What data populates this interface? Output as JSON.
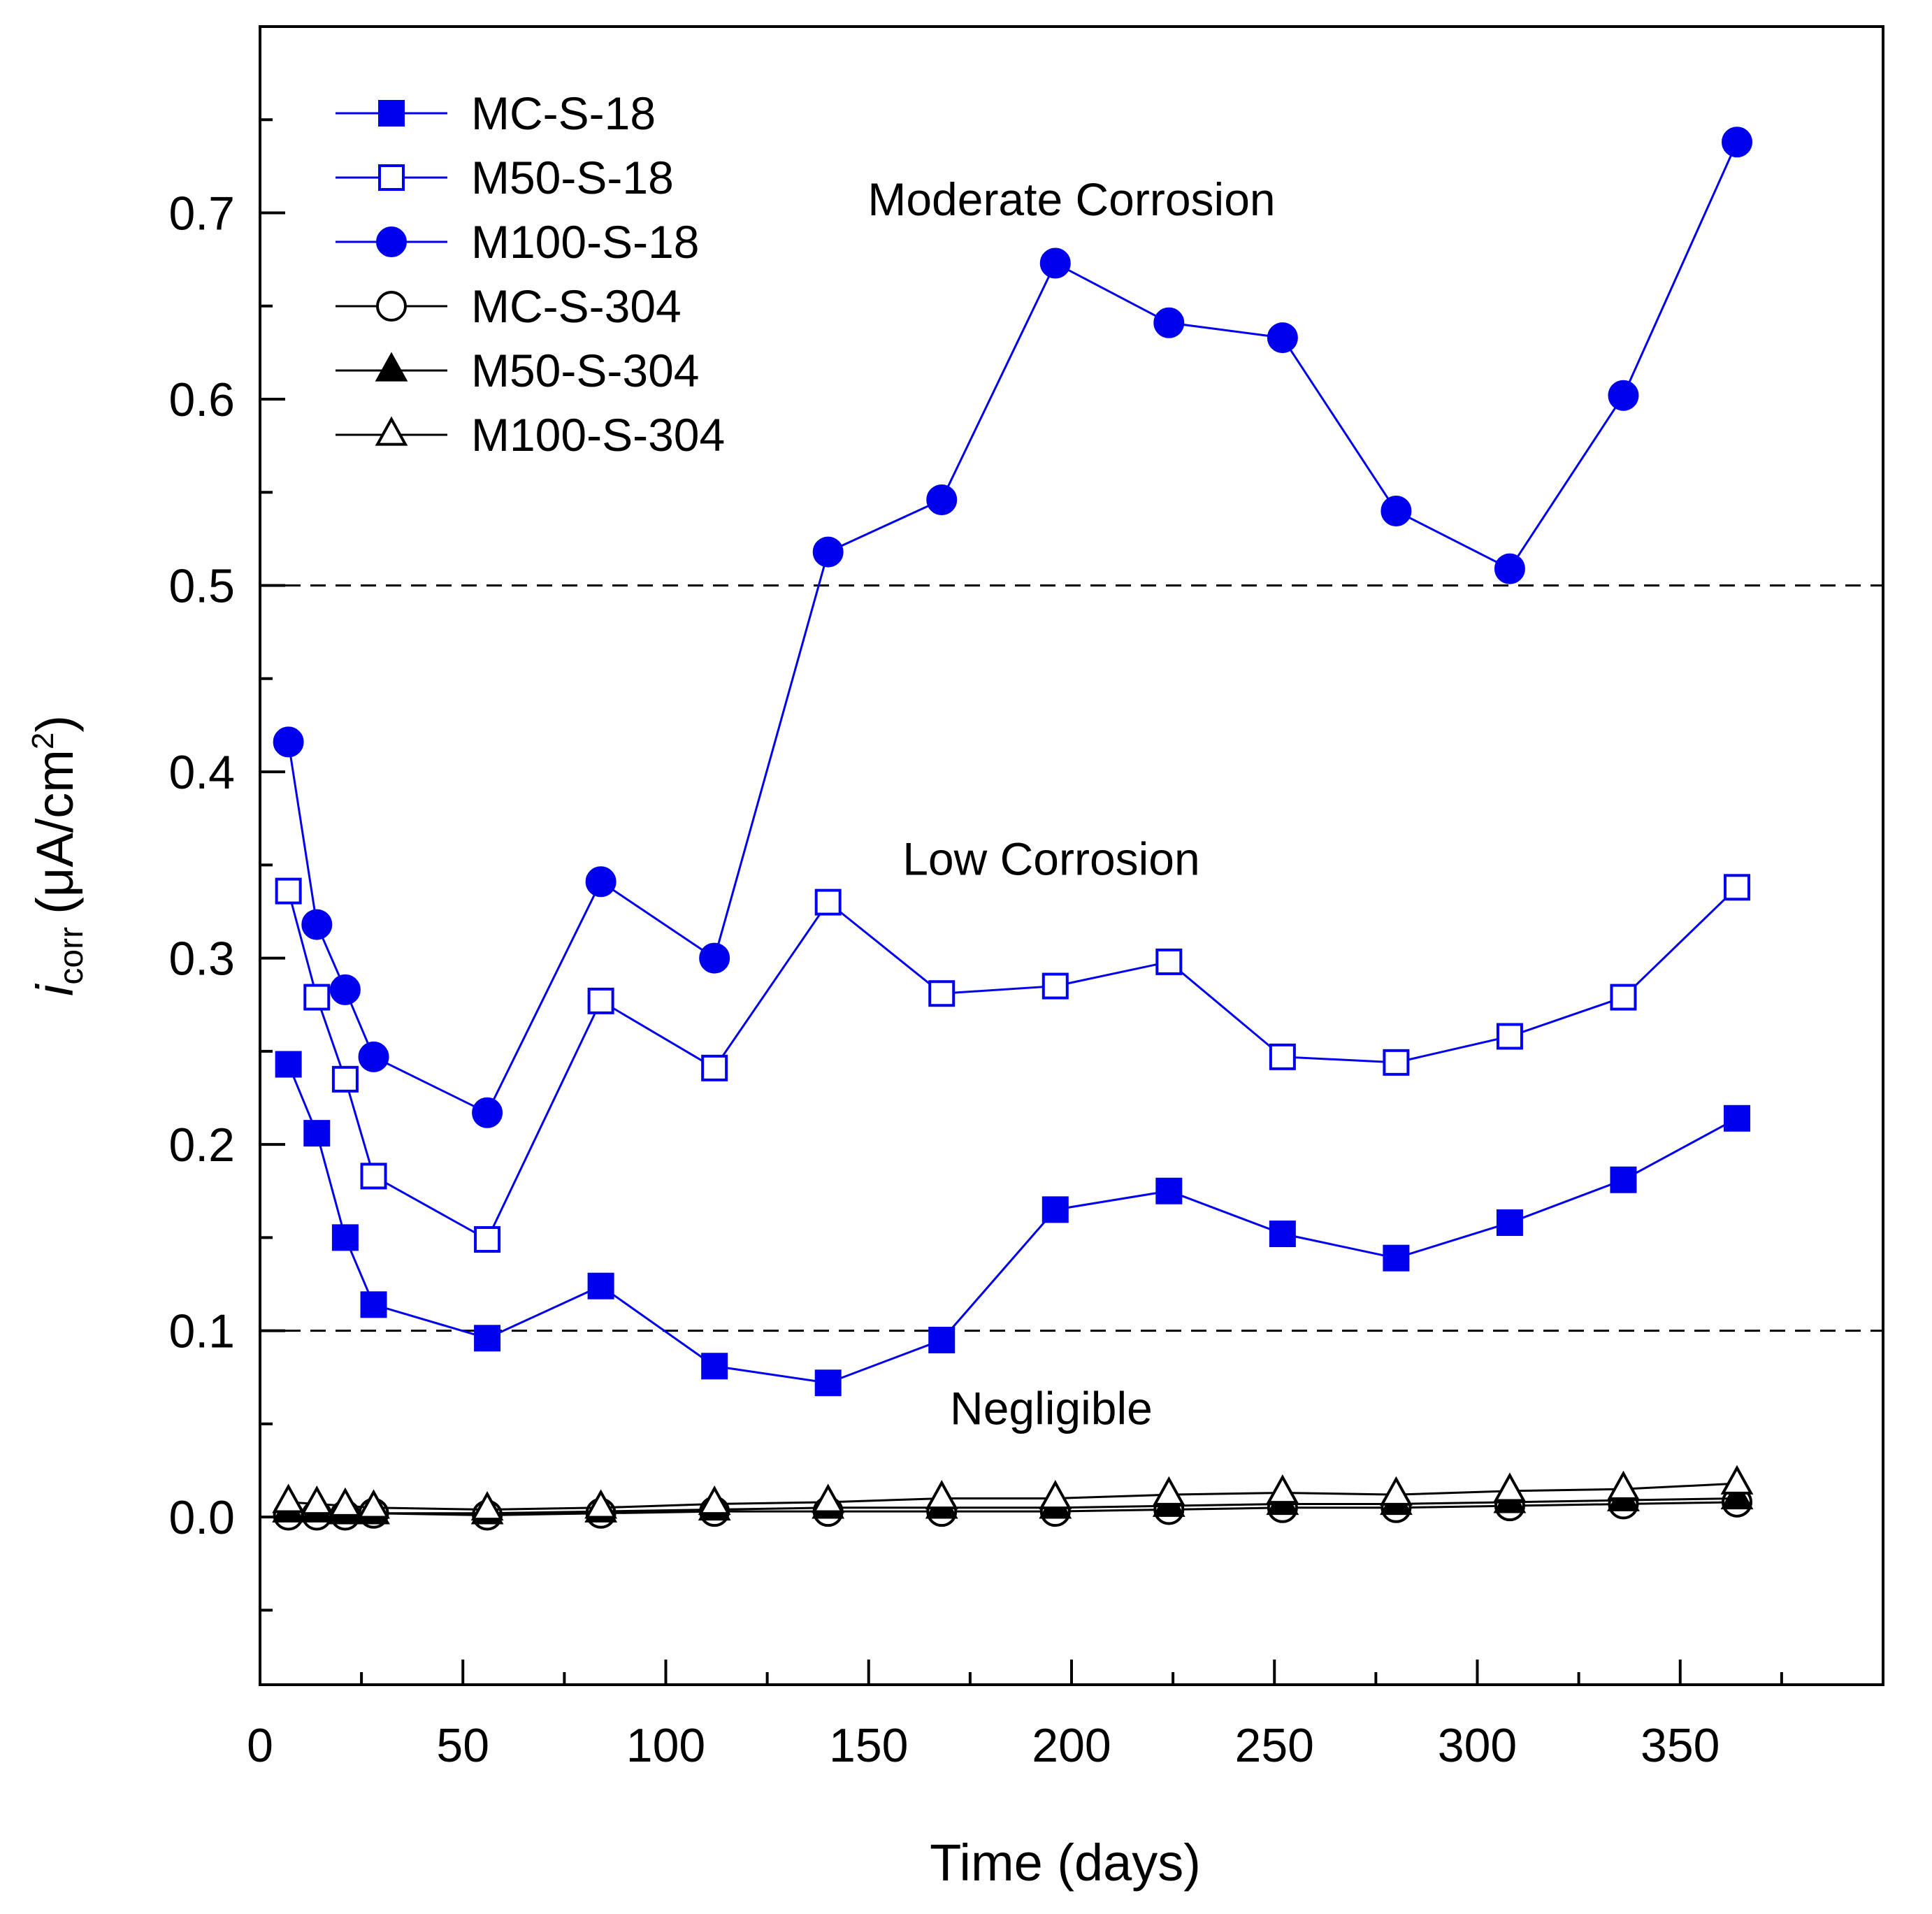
{
  "chart_data": {
    "type": "line",
    "title": "",
    "xlabel": "Time (days)",
    "ylabel": {
      "main": "i",
      "sub": "corr",
      "unit": "(μA/cm",
      "sup": "2",
      "close": ")"
    },
    "xlim": [
      0,
      400
    ],
    "ylim": [
      -0.09,
      0.8
    ],
    "xticks": [
      0,
      50,
      100,
      150,
      200,
      250,
      300,
      350
    ],
    "xtick_labels": [
      "0",
      "50",
      "100",
      "150",
      "200",
      "250",
      "300",
      "350"
    ],
    "yticks": [
      0.0,
      0.1,
      0.2,
      0.3,
      0.4,
      0.5,
      0.6,
      0.7
    ],
    "ytick_labels": [
      "0.0",
      "0.1",
      "0.2",
      "0.3",
      "0.4",
      "0.5",
      "0.6",
      "0.7"
    ],
    "grid": false,
    "legend_position": "top-left",
    "x": [
      7,
      14,
      21,
      28,
      56,
      84,
      112,
      140,
      168,
      196,
      224,
      252,
      280,
      308,
      336,
      364
    ],
    "series": [
      {
        "name": "MC-S-18",
        "color": "#0000ee",
        "marker": "square",
        "filled": true,
        "values": [
          0.243,
          0.206,
          0.15,
          0.114,
          0.096,
          0.124,
          0.081,
          0.072,
          0.095,
          0.165,
          0.175,
          0.152,
          0.139,
          0.158,
          0.181,
          0.214
        ]
      },
      {
        "name": "M50-S-18",
        "color": "#0000ee",
        "marker": "square",
        "filled": false,
        "values": [
          0.336,
          0.279,
          0.235,
          0.183,
          0.149,
          0.277,
          0.241,
          0.33,
          0.281,
          0.285,
          0.298,
          0.247,
          0.244,
          0.258,
          0.279,
          0.338
        ]
      },
      {
        "name": "M100-S-18",
        "color": "#0000ee",
        "marker": "circle",
        "filled": true,
        "values": [
          0.416,
          0.318,
          0.283,
          0.247,
          0.217,
          0.341,
          0.3,
          0.518,
          0.546,
          0.673,
          0.641,
          0.633,
          0.54,
          0.509,
          0.602,
          0.738
        ]
      },
      {
        "name": "MC-S-304",
        "color": "#000000",
        "marker": "circle",
        "filled": false,
        "values": [
          0.001,
          0.001,
          0.001,
          0.002,
          0.001,
          0.002,
          0.003,
          0.003,
          0.003,
          0.003,
          0.004,
          0.005,
          0.005,
          0.006,
          0.007,
          0.008
        ]
      },
      {
        "name": "M50-S-304",
        "color": "#000000",
        "marker": "triangle",
        "filled": true,
        "values": [
          0.003,
          0.003,
          0.002,
          0.002,
          0.002,
          0.003,
          0.004,
          0.005,
          0.005,
          0.005,
          0.006,
          0.007,
          0.007,
          0.008,
          0.009,
          0.01
        ]
      },
      {
        "name": "M100-S-304",
        "color": "#000000",
        "marker": "triangle",
        "filled": false,
        "values": [
          0.008,
          0.007,
          0.006,
          0.005,
          0.004,
          0.005,
          0.007,
          0.008,
          0.01,
          0.01,
          0.012,
          0.013,
          0.012,
          0.014,
          0.015,
          0.018
        ]
      }
    ],
    "reference_lines": [
      {
        "name": "low-threshold",
        "y": 0.1,
        "style": "dashed"
      },
      {
        "name": "moderate-threshold",
        "y": 0.5,
        "style": "dashed"
      }
    ],
    "annotations": [
      {
        "name": "moderate-corrosion",
        "text": "Moderate Corrosion",
        "x": 200,
        "y": 0.707
      },
      {
        "name": "low-corrosion",
        "text": "Low Corrosion",
        "x": 195,
        "y": 0.353
      },
      {
        "name": "negligible",
        "text": "Negligible",
        "x": 195,
        "y": 0.058
      }
    ]
  }
}
